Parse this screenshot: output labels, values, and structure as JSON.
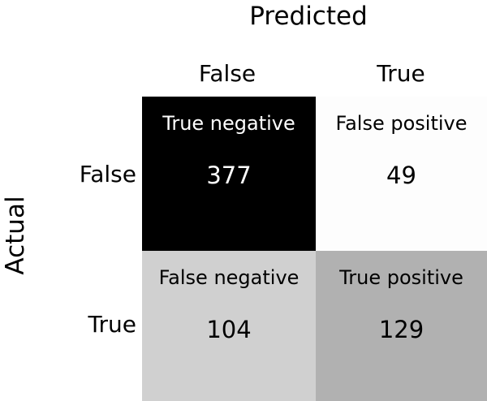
{
  "chart_data": {
    "type": "heatmap",
    "title": "",
    "xlabel": "Predicted",
    "ylabel": "Actual",
    "x_categories": [
      "False",
      "True"
    ],
    "y_categories": [
      "False",
      "True"
    ],
    "cells": [
      [
        {
          "label": "True negative",
          "value": 377,
          "color": "#000000"
        },
        {
          "label": "False positive",
          "value": 49,
          "color": "#fdfdfd"
        }
      ],
      [
        {
          "label": "False negative",
          "value": 104,
          "color": "#d0d0d0"
        },
        {
          "label": "True positive",
          "value": 129,
          "color": "#b1b1b1"
        }
      ]
    ]
  }
}
